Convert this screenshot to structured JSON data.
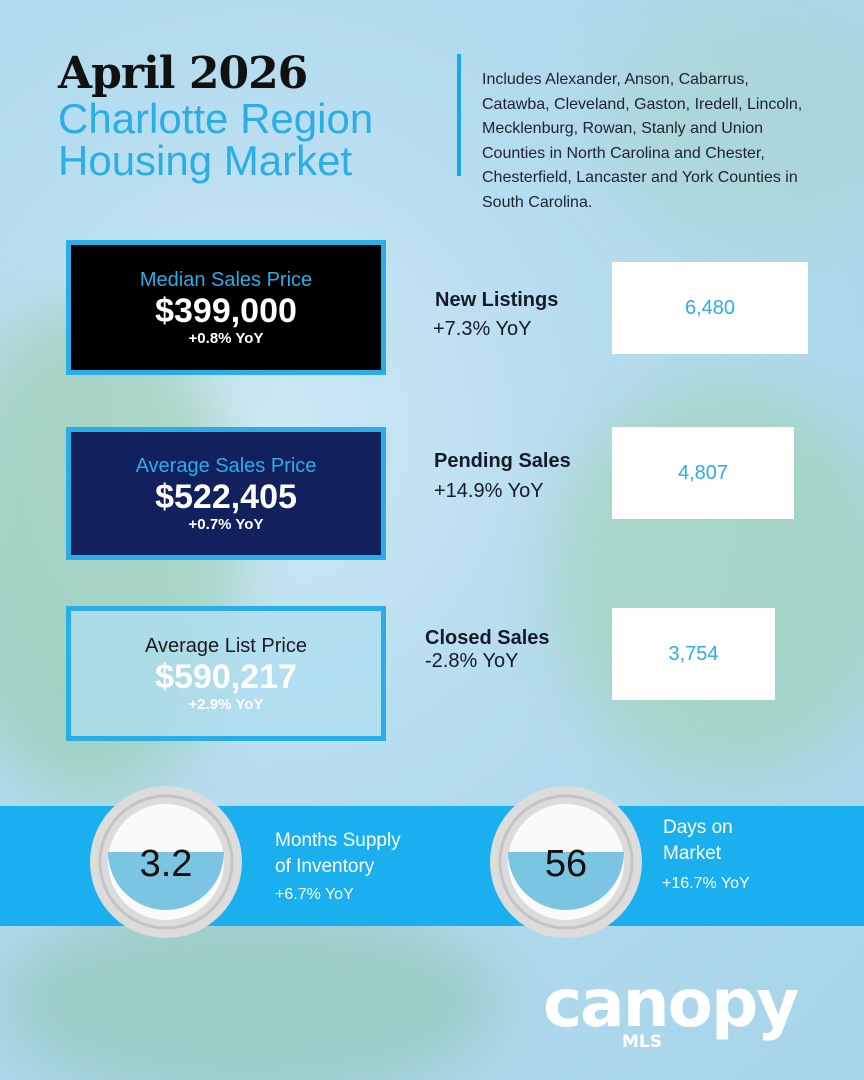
{
  "header": {
    "title": "April 2026",
    "subtitle": [
      "Charlotte Region",
      "Housing Market"
    ],
    "description": "Includes Alexander, Anson, Cabarrus, Catawba, Cleveland, Gaston, Iredell, Lincoln, Mecklenburg, Rowan, Stanly and Union Counties in North Carolina and Chester, Chesterfield, Lancaster and York Counties in South Carolina."
  },
  "price_cards": [
    {
      "label": "Median Sales Price",
      "value": "$399,000",
      "change": "+0.8% YoY"
    },
    {
      "label": "Average Sales Price",
      "value": "$522,405",
      "change": "+0.7% YoY"
    },
    {
      "label": "Average List Price",
      "value": "$590,217",
      "change": "+2.9% YoY"
    }
  ],
  "stats": [
    {
      "label": "New Listings",
      "change": "+7.3% YoY",
      "value": "6,480"
    },
    {
      "label": "Pending Sales",
      "change": "+14.9% YoY",
      "value": "4,807"
    },
    {
      "label": "Closed Sales",
      "change": "-2.8% YoY",
      "value": "3,754"
    }
  ],
  "gauges": [
    {
      "value": "3.2",
      "label": [
        "Months Supply",
        "of Inventory"
      ],
      "change": "+6.7% YoY"
    },
    {
      "value": "56",
      "label": [
        "Days on",
        "Market"
      ],
      "change": "+16.7% YoY"
    }
  ],
  "logo": {
    "name": "canopy",
    "sub": "MLS"
  }
}
